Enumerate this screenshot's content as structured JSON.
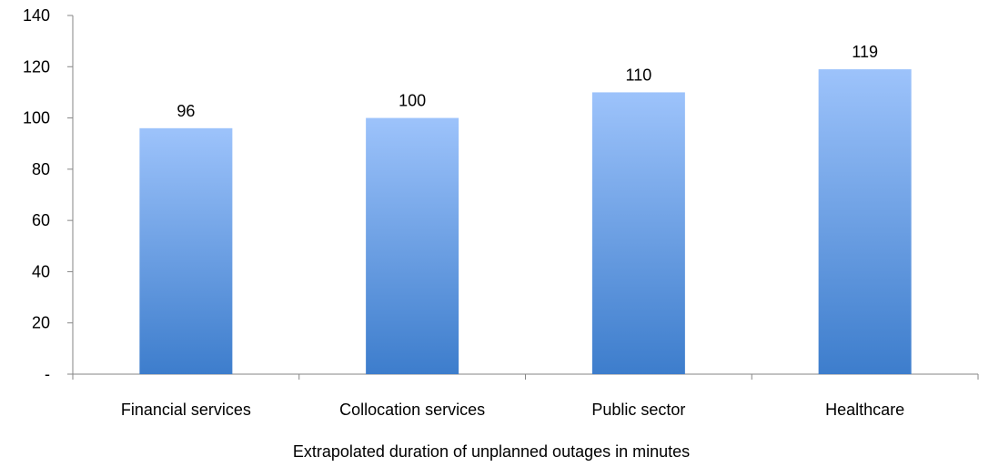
{
  "chart_data": {
    "type": "bar",
    "categories": [
      "Financial services",
      "Collocation services",
      "Public sector",
      "Healthcare"
    ],
    "values": [
      96,
      100,
      110,
      119
    ],
    "data_labels": [
      "96",
      "100",
      "110",
      "119"
    ],
    "xlabel": "Extrapolated duration of unplanned outages in minutes",
    "ylabel": "",
    "ylim": [
      0,
      140
    ],
    "yticks": [
      0,
      20,
      40,
      60,
      80,
      100,
      120,
      140
    ],
    "ytick_labels": [
      "-",
      "20",
      "40",
      "60",
      "80",
      "100",
      "120",
      "140"
    ],
    "grid": false,
    "legend": "none",
    "colors": {
      "bar_top": "#9dc3fb",
      "bar_bottom": "#3d7dcc",
      "axis": "#868686"
    }
  }
}
